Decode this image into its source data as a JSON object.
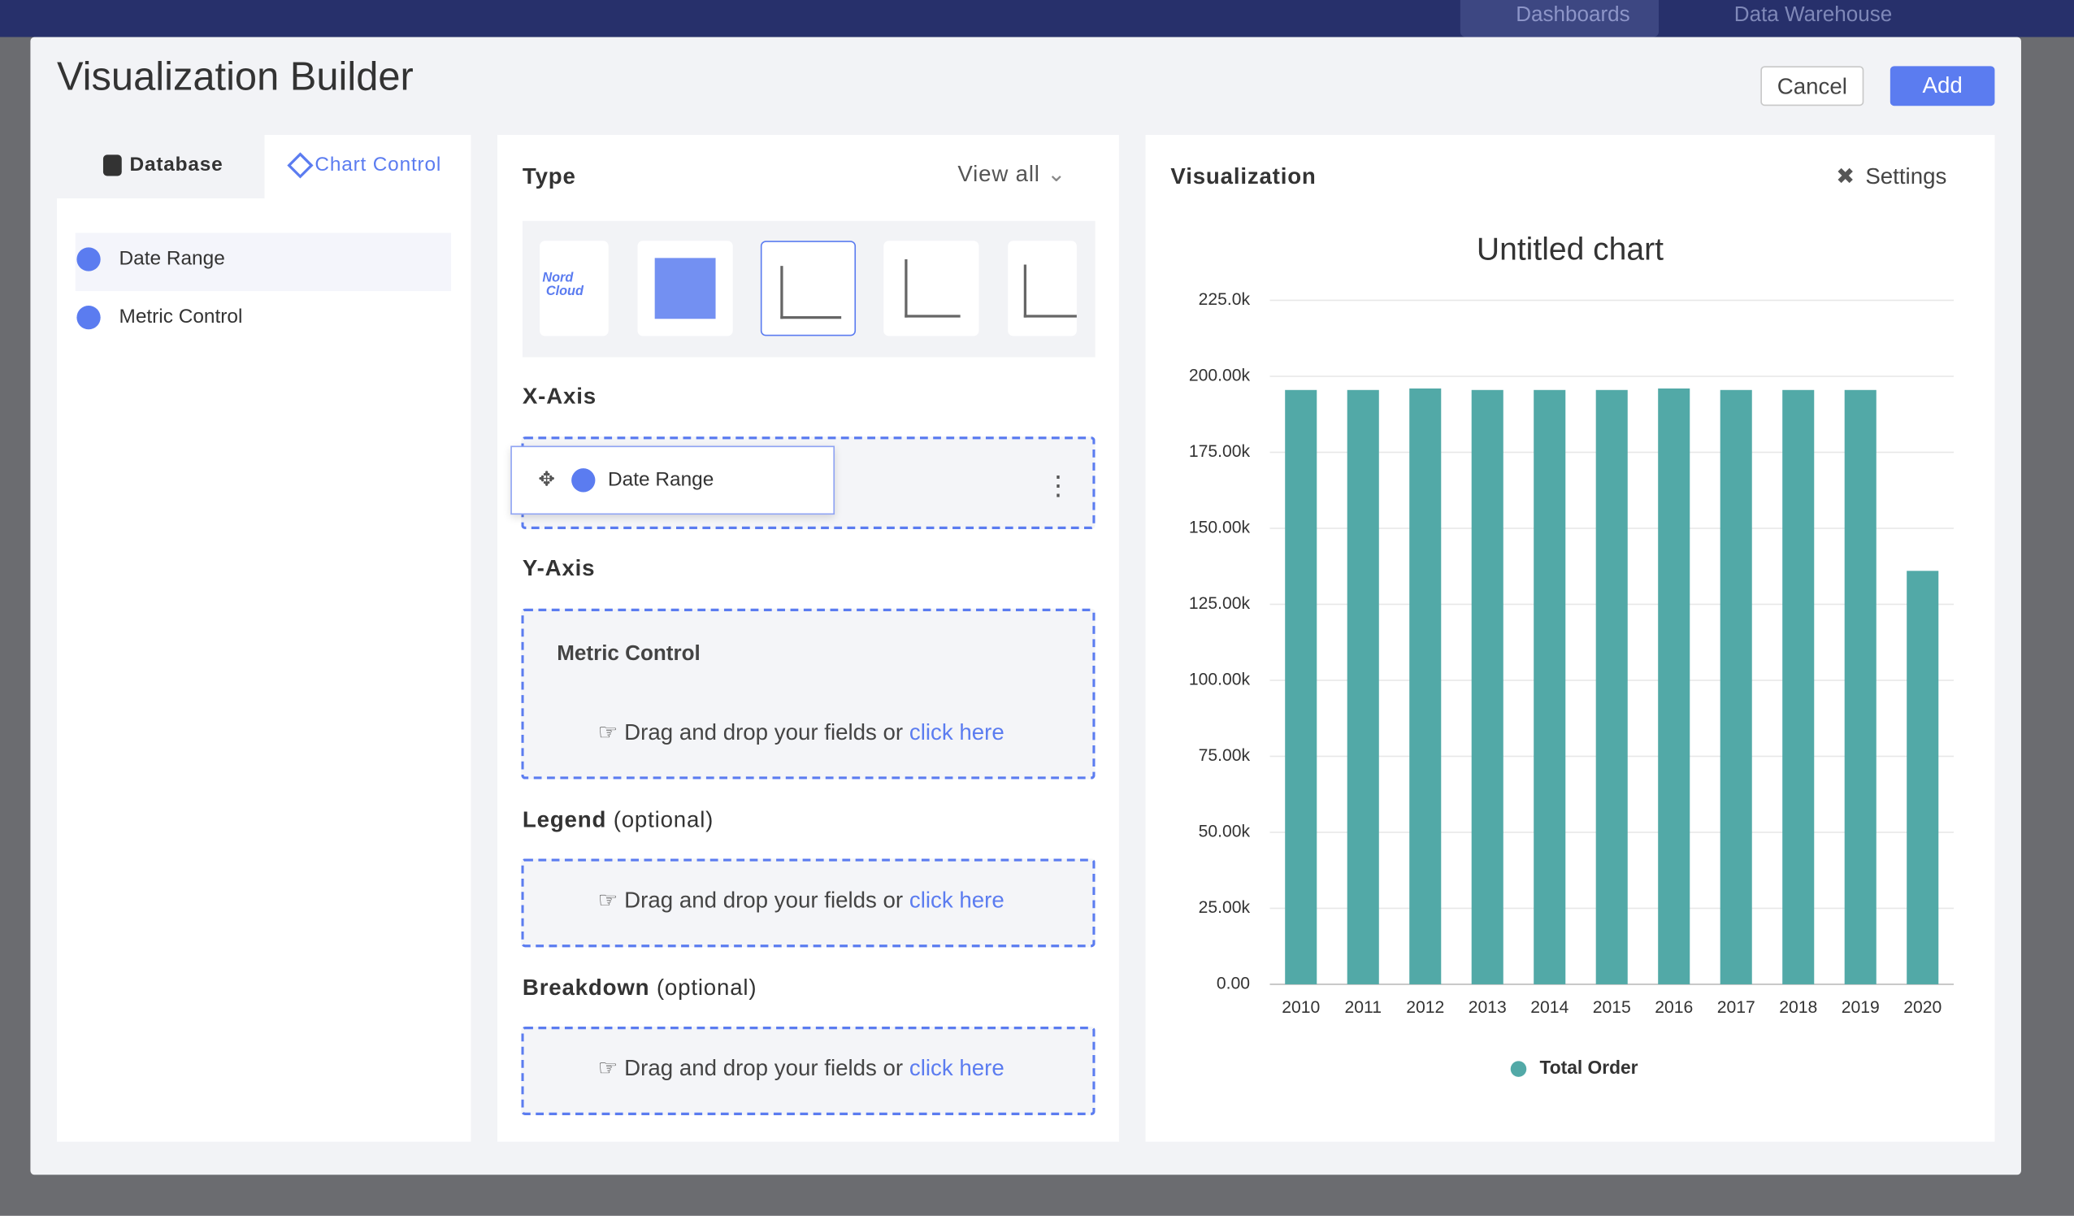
{
  "topbar": {
    "nav": [
      "Dashboards",
      "Data Warehouse"
    ]
  },
  "modal": {
    "title": "Visualization Builder",
    "buttons": {
      "cancel": "Cancel",
      "add": "Add"
    },
    "left_panel": {
      "tabs": [
        "Database",
        "Chart Control"
      ],
      "items": [
        "Date Range",
        "Metric Control"
      ]
    },
    "middle_panel": {
      "type_label": "Type",
      "view_all": "View all",
      "thumbnail_text": [
        "Nord",
        "Cloud"
      ],
      "x_axis": {
        "label": "X-Axis",
        "dragged_item": "Date Range"
      },
      "y_axis": {
        "label": "Y-Axis",
        "field": "Metric Control"
      },
      "legend": {
        "label": "Legend",
        "optional": "(optional)"
      },
      "breakdown": {
        "label": "Breakdown",
        "optional": "(optional)"
      },
      "drop_hint": "Drag and drop your fields or",
      "drop_link": "click here"
    },
    "right_panel": {
      "title": "Visualization",
      "settings": "Settings"
    }
  },
  "chart_data": {
    "type": "bar",
    "title": "Untitled chart",
    "categories": [
      "2010",
      "2011",
      "2012",
      "2013",
      "2014",
      "2015",
      "2016",
      "2017",
      "2018",
      "2019",
      "2020"
    ],
    "series": [
      {
        "name": "Total Order",
        "color": "#52a9a7",
        "values": [
          195500,
          195500,
          196000,
          195500,
          195500,
          195500,
          196000,
          195500,
          195500,
          195500,
          136000
        ]
      }
    ],
    "ylim": [
      0,
      225000
    ],
    "yticks": [
      {
        "value": 0,
        "label": "0.00"
      },
      {
        "value": 25000,
        "label": "25.00k"
      },
      {
        "value": 50000,
        "label": "50.00k"
      },
      {
        "value": 75000,
        "label": "75.00k"
      },
      {
        "value": 100000,
        "label": "100.00k"
      },
      {
        "value": 125000,
        "label": "125.00k"
      },
      {
        "value": 150000,
        "label": "150.00k"
      },
      {
        "value": 175000,
        "label": "175.00k"
      },
      {
        "value": 200000,
        "label": "200.00k"
      },
      {
        "value": 225000,
        "label": "225.0k"
      }
    ],
    "grid": true,
    "legend": "bottom"
  }
}
